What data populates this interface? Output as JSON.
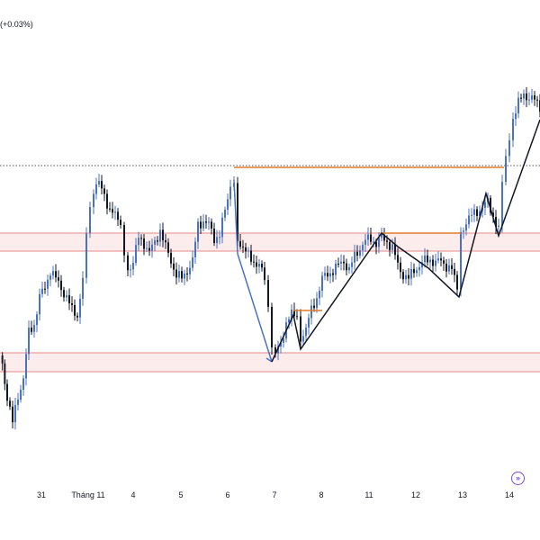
{
  "chart_data": {
    "type": "candlestick",
    "title": "",
    "xlabel": "",
    "ylabel": "",
    "change_readout": "(+0.03%)",
    "x_ticks": [
      "31",
      "Tháng 11",
      "4",
      "5",
      "6",
      "7",
      "8",
      "11",
      "12",
      "13",
      "14"
    ],
    "colors": {
      "candle": "#131722",
      "blue_path": "#4a72c4",
      "black_path": "#131722",
      "orange_level": "#e07b2e",
      "zone_border": "#e58a8a",
      "zone_fill": "#fdecec",
      "dotted_line": "#555555",
      "accent": "#7b4bd6"
    },
    "icons": {
      "go_realtime": "double-chevron-right-icon"
    },
    "go_realtime_glyph": "»"
  }
}
